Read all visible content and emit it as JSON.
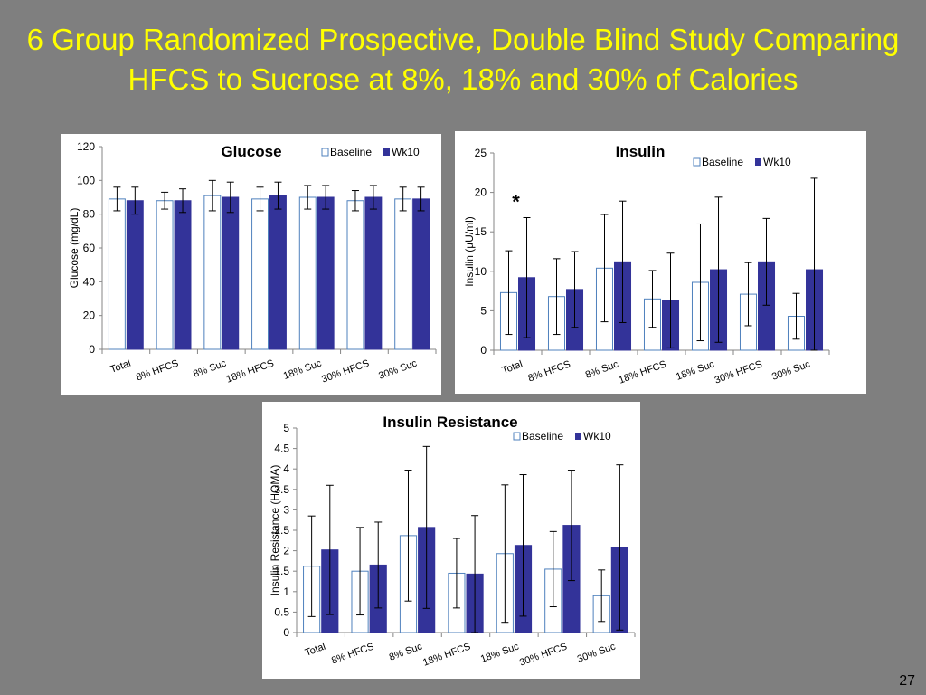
{
  "slide": {
    "title_line1": "6 Group Randomized Prospective, Double Blind Study Comparing",
    "title_line2": "HFCS to Sucrose at 8%, 18% and 30% of Calories",
    "page_number": "27"
  },
  "colors": {
    "background": "#7f7f7f",
    "title": "#ffff00",
    "baseline_fill": "#ffffff",
    "baseline_stroke": "#4f81bd",
    "wk10_fill": "#333399"
  },
  "chart_data": [
    {
      "type": "bar",
      "title": "Glucose",
      "ylabel": "Glucose (mg/dL)",
      "xlabel": "",
      "ylim": [
        0,
        120
      ],
      "yticks": [
        0,
        20,
        40,
        60,
        80,
        100,
        120
      ],
      "categories": [
        "Total",
        "8% HFCS",
        "8% Suc",
        "18% HFCS",
        "18% Suc",
        "30% HFCS",
        "30% Suc"
      ],
      "series": [
        {
          "name": "Baseline",
          "values": [
            89,
            88,
            91,
            89,
            90,
            88,
            89
          ],
          "error": [
            7,
            5,
            9,
            7,
            7,
            6,
            7
          ]
        },
        {
          "name": "Wk10",
          "values": [
            88,
            88,
            90,
            91,
            90,
            90,
            89
          ],
          "error": [
            8,
            7,
            9,
            8,
            7,
            7,
            7
          ]
        }
      ],
      "annotations": [],
      "legend": "top-right",
      "grid": false
    },
    {
      "type": "bar",
      "title": "Insulin",
      "ylabel": "Insulin (µU/ml)",
      "xlabel": "",
      "ylim": [
        0,
        25
      ],
      "yticks": [
        0,
        5,
        10,
        15,
        20,
        25
      ],
      "categories": [
        "Total",
        "8% HFCS",
        "8% Suc",
        "18% HFCS",
        "18% Suc",
        "30% HFCS",
        "30% Suc"
      ],
      "series": [
        {
          "name": "Baseline",
          "values": [
            7.3,
            6.8,
            10.4,
            6.5,
            8.6,
            7.1,
            4.3
          ],
          "error": [
            5.3,
            4.8,
            6.8,
            3.6,
            7.4,
            4.0,
            2.9
          ]
        },
        {
          "name": "Wk10",
          "values": [
            9.2,
            7.7,
            11.2,
            6.3,
            10.2,
            11.2,
            10.2
          ],
          "error": [
            7.6,
            4.8,
            7.7,
            6.0,
            9.2,
            5.5,
            11.6
          ]
        }
      ],
      "annotations": [
        {
          "text": "*",
          "category": "Total"
        }
      ],
      "legend": "top-right",
      "grid": false
    },
    {
      "type": "bar",
      "title": "Insulin Resistance",
      "ylabel": "Insulin Resistance (HOMA)",
      "xlabel": "",
      "ylim": [
        0,
        5
      ],
      "yticks": [
        "0",
        "0.5",
        "1",
        "1.5",
        "2",
        "2.5",
        "3",
        "3.5",
        "4",
        "4.5",
        "5"
      ],
      "categories": [
        "Total",
        "8% HFCS",
        "8% Suc",
        "18% HFCS",
        "18% Suc",
        "30% HFCS",
        "30% Suc"
      ],
      "series": [
        {
          "name": "Baseline",
          "values": [
            1.62,
            1.5,
            2.37,
            1.45,
            1.93,
            1.55,
            0.9
          ],
          "error": [
            1.23,
            1.07,
            1.6,
            0.85,
            1.68,
            0.92,
            0.63
          ]
        },
        {
          "name": "Wk10",
          "values": [
            2.02,
            1.65,
            2.57,
            1.43,
            2.13,
            2.62,
            2.08
          ],
          "error": [
            1.58,
            1.05,
            1.98,
            1.43,
            1.73,
            1.35,
            2.02
          ]
        }
      ],
      "annotations": [],
      "legend": "top-right",
      "grid": false
    }
  ]
}
